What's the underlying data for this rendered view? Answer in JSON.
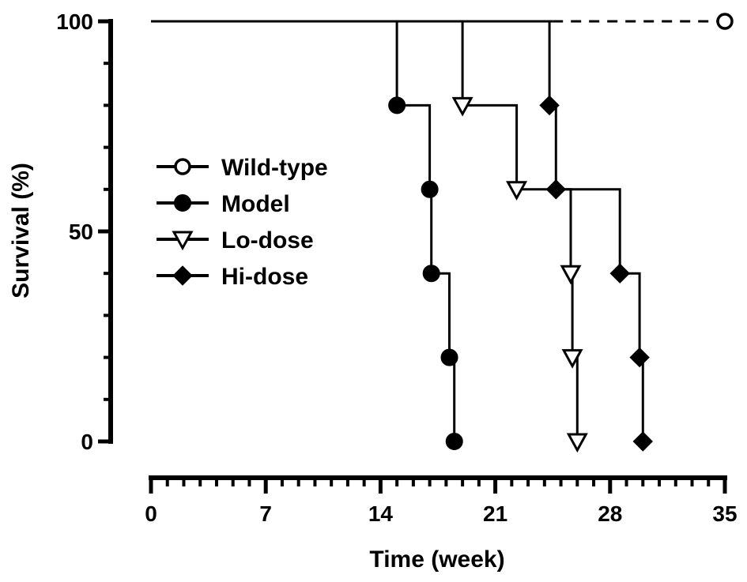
{
  "chart_data": {
    "type": "line",
    "subtype": "kaplan-meier-step",
    "xlabel": "Time (week)",
    "ylabel": "Survival (%)",
    "xlim": [
      0,
      35
    ],
    "ylim": [
      0,
      100
    ],
    "x_ticks": [
      "0",
      "7",
      "14",
      "21",
      "28",
      "35"
    ],
    "y_ticks": [
      "0",
      "50",
      "100"
    ],
    "x_tick_values": [
      0,
      7,
      14,
      21,
      28,
      35
    ],
    "y_tick_values": [
      0,
      50,
      100
    ],
    "x_minor_step": 1,
    "grid": false,
    "legend_position": "left-center",
    "series": [
      {
        "name": "Wild-type",
        "marker": "open-circle",
        "dashed_after": 24.5,
        "points": [
          [
            0,
            100
          ],
          [
            35,
            100
          ]
        ],
        "marked_points": [
          [
            35,
            100
          ]
        ]
      },
      {
        "name": "Model",
        "marker": "filled-circle",
        "points": [
          [
            0,
            100
          ],
          [
            15,
            100
          ],
          [
            15,
            80
          ],
          [
            17,
            80
          ],
          [
            17,
            60
          ],
          [
            17.1,
            60
          ],
          [
            17.1,
            40
          ],
          [
            18.2,
            40
          ],
          [
            18.2,
            20
          ],
          [
            18.5,
            20
          ],
          [
            18.5,
            0
          ]
        ],
        "marked_points": [
          [
            15,
            80
          ],
          [
            17,
            60
          ],
          [
            17.1,
            40
          ],
          [
            18.2,
            20
          ],
          [
            18.5,
            0
          ]
        ]
      },
      {
        "name": "Lo-dose",
        "marker": "open-triangle-down",
        "points": [
          [
            0,
            100
          ],
          [
            19,
            100
          ],
          [
            19,
            80
          ],
          [
            22.3,
            80
          ],
          [
            22.3,
            60
          ],
          [
            25.6,
            60
          ],
          [
            25.6,
            40
          ],
          [
            25.7,
            40
          ],
          [
            25.7,
            20
          ],
          [
            26,
            20
          ],
          [
            26,
            0
          ]
        ],
        "marked_points": [
          [
            19,
            80
          ],
          [
            22.3,
            60
          ],
          [
            25.6,
            40
          ],
          [
            25.7,
            20
          ],
          [
            26,
            0
          ]
        ]
      },
      {
        "name": "Hi-dose",
        "marker": "filled-diamond",
        "points": [
          [
            0,
            100
          ],
          [
            24.3,
            100
          ],
          [
            24.3,
            80
          ],
          [
            24.7,
            80
          ],
          [
            24.7,
            60
          ],
          [
            28.6,
            60
          ],
          [
            28.6,
            40
          ],
          [
            29.8,
            40
          ],
          [
            29.8,
            20
          ],
          [
            30,
            20
          ],
          [
            30,
            0
          ]
        ],
        "marked_points": [
          [
            24.3,
            80
          ],
          [
            24.7,
            60
          ],
          [
            28.6,
            40
          ],
          [
            29.8,
            20
          ],
          [
            30,
            0
          ]
        ]
      }
    ],
    "colors": {
      "line": "#000000",
      "marker_fill": "#000000",
      "open_fill": "#ffffff"
    }
  }
}
